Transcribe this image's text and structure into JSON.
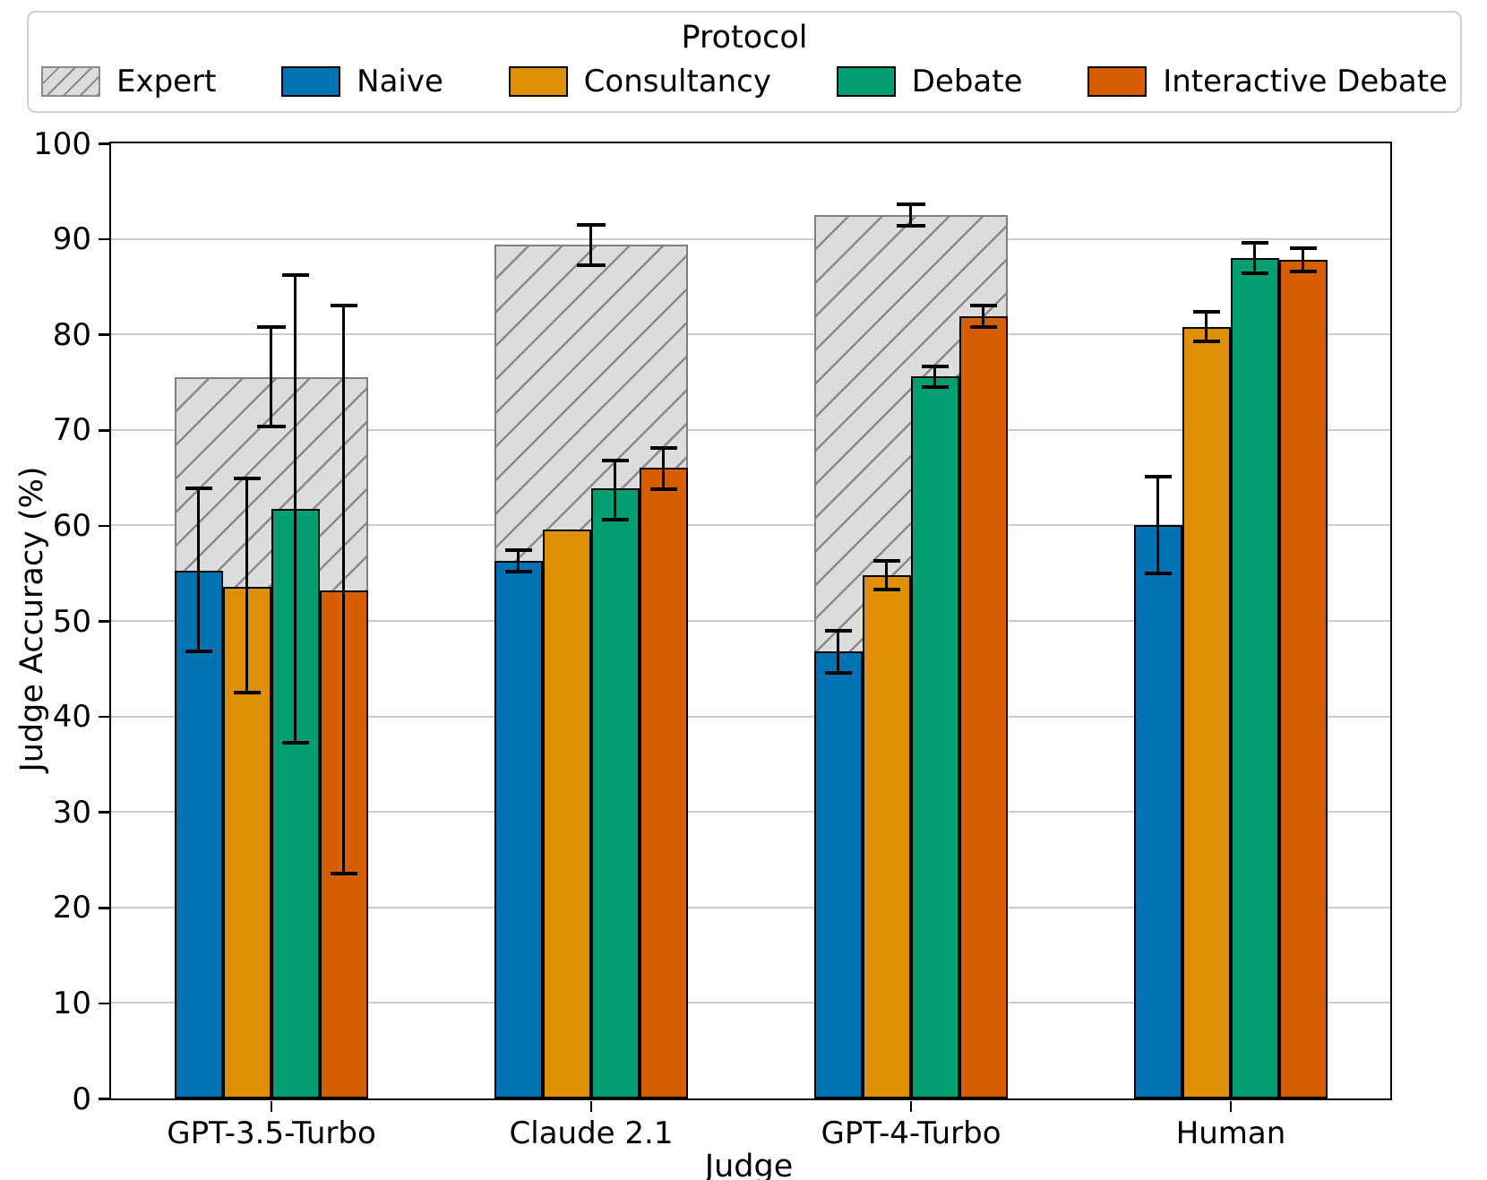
{
  "legend": {
    "title": "Protocol",
    "entries": [
      {
        "label": "Expert",
        "style": "hatched",
        "color": "#dcdcdc"
      },
      {
        "label": "Naive",
        "style": "solid",
        "color": "#0173b2"
      },
      {
        "label": "Consultancy",
        "style": "solid",
        "color": "#de8f05"
      },
      {
        "label": "Debate",
        "style": "solid",
        "color": "#029e73"
      },
      {
        "label": "Interactive Debate",
        "style": "solid",
        "color": "#d55e00"
      }
    ]
  },
  "chart_data": {
    "type": "bar",
    "title": "",
    "xlabel": "Judge",
    "ylabel": "Judge Accuracy (%)",
    "ylim": [
      0,
      100
    ],
    "yticks": [
      0,
      10,
      20,
      30,
      40,
      50,
      60,
      70,
      80,
      90,
      100
    ],
    "grid": "horizontal",
    "legend_position": "top",
    "legend_title": "Protocol",
    "categories": [
      "GPT-3.5-Turbo",
      "Claude 2.1",
      "GPT-4-Turbo",
      "Human"
    ],
    "series": [
      {
        "name": "Expert",
        "style": "hatched-background",
        "color": "#dcdcdc",
        "hatch_color": "#8a8a8a",
        "values": [
          75.5,
          89.4,
          92.5,
          null
        ],
        "err_low": [
          70.4,
          87.2,
          91.4,
          null
        ],
        "err_high": [
          80.8,
          91.5,
          93.6,
          null
        ]
      },
      {
        "name": "Naive",
        "style": "solid",
        "color": "#0173b2",
        "values": [
          55.3,
          56.3,
          46.8,
          60.0
        ],
        "err_low": [
          46.8,
          55.2,
          44.6,
          55.0
        ],
        "err_high": [
          63.9,
          57.4,
          49.0,
          65.1
        ]
      },
      {
        "name": "Consultancy",
        "style": "solid",
        "color": "#de8f05",
        "values": [
          53.6,
          59.6,
          54.8,
          80.8
        ],
        "err_low": [
          42.5,
          null,
          53.3,
          79.3
        ],
        "err_high": [
          64.9,
          null,
          56.3,
          82.4
        ]
      },
      {
        "name": "Debate",
        "style": "solid",
        "color": "#029e73",
        "values": [
          61.7,
          63.9,
          75.6,
          88.0
        ],
        "err_low": [
          37.2,
          60.6,
          74.5,
          86.4
        ],
        "err_high": [
          86.2,
          66.8,
          76.6,
          89.6
        ]
      },
      {
        "name": "Interactive Debate",
        "style": "solid",
        "color": "#d55e00",
        "values": [
          53.2,
          66.0,
          81.9,
          87.8
        ],
        "err_low": [
          23.5,
          63.8,
          80.8,
          86.6
        ],
        "err_high": [
          83.0,
          68.1,
          83.0,
          89.0
        ]
      }
    ]
  }
}
